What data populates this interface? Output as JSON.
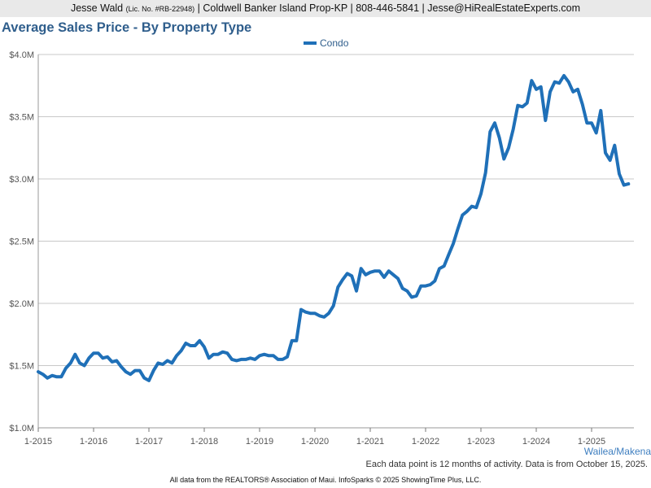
{
  "header": {
    "name": "Jesse Wald",
    "license": "(Lic. No. #RB-22948)",
    "rest": "| Coldwell Banker Island Prop-KP | 808-446-5841 | Jesse@HiRealEstateExperts.com"
  },
  "region_link": "Wailea/Makena",
  "note": "Each data point is 12 months of activity. Data is from October 15, 2025.",
  "footer": "All data from the REALTORS® Association of Maui. InfoSparks © 2025 ShowingTime Plus, LLC.",
  "colors": {
    "series": "#1f70b8",
    "title": "#2f5e8c",
    "grid": "#c8c8c8",
    "axis_text": "#555555"
  },
  "chart_data": {
    "type": "line",
    "title": "Average Sales Price - By Property Type",
    "xlabel": "",
    "ylabel": "",
    "ylim": [
      1000000,
      4000000
    ],
    "y_ticks": [
      1000000,
      1500000,
      2000000,
      2500000,
      3000000,
      3500000,
      4000000
    ],
    "y_tick_labels": [
      "$1.0M",
      "$1.5M",
      "$2.0M",
      "$2.5M",
      "$3.0M",
      "$3.5M",
      "$4.0M"
    ],
    "x_ticks": [
      "1-2015",
      "1-2016",
      "1-2017",
      "1-2018",
      "1-2019",
      "1-2020",
      "1-2021",
      "1-2022",
      "1-2023",
      "1-2024",
      "1-2025"
    ],
    "x_start": "2015-01",
    "grid": true,
    "legend_position": "top-center",
    "series": [
      {
        "name": "Condo",
        "values": [
          1450000,
          1430000,
          1400000,
          1420000,
          1410000,
          1410000,
          1480000,
          1520000,
          1590000,
          1520000,
          1500000,
          1560000,
          1600000,
          1600000,
          1560000,
          1570000,
          1530000,
          1540000,
          1490000,
          1450000,
          1430000,
          1460000,
          1460000,
          1400000,
          1380000,
          1460000,
          1520000,
          1510000,
          1540000,
          1520000,
          1580000,
          1620000,
          1680000,
          1660000,
          1660000,
          1700000,
          1650000,
          1560000,
          1590000,
          1590000,
          1610000,
          1600000,
          1550000,
          1540000,
          1550000,
          1550000,
          1560000,
          1550000,
          1580000,
          1590000,
          1580000,
          1580000,
          1550000,
          1550000,
          1570000,
          1700000,
          1700000,
          1950000,
          1930000,
          1920000,
          1920000,
          1900000,
          1890000,
          1920000,
          1980000,
          2130000,
          2190000,
          2240000,
          2220000,
          2100000,
          2280000,
          2230000,
          2250000,
          2260000,
          2260000,
          2210000,
          2260000,
          2230000,
          2200000,
          2120000,
          2100000,
          2050000,
          2060000,
          2140000,
          2140000,
          2150000,
          2180000,
          2280000,
          2300000,
          2390000,
          2480000,
          2600000,
          2710000,
          2740000,
          2780000,
          2770000,
          2880000,
          3050000,
          3380000,
          3450000,
          3330000,
          3160000,
          3250000,
          3400000,
          3590000,
          3580000,
          3610000,
          3790000,
          3720000,
          3740000,
          3470000,
          3700000,
          3780000,
          3770000,
          3830000,
          3780000,
          3700000,
          3720000,
          3600000,
          3450000,
          3450000,
          3370000,
          3550000,
          3210000,
          3150000,
          3270000,
          3040000,
          2950000,
          2960000
        ]
      }
    ]
  }
}
